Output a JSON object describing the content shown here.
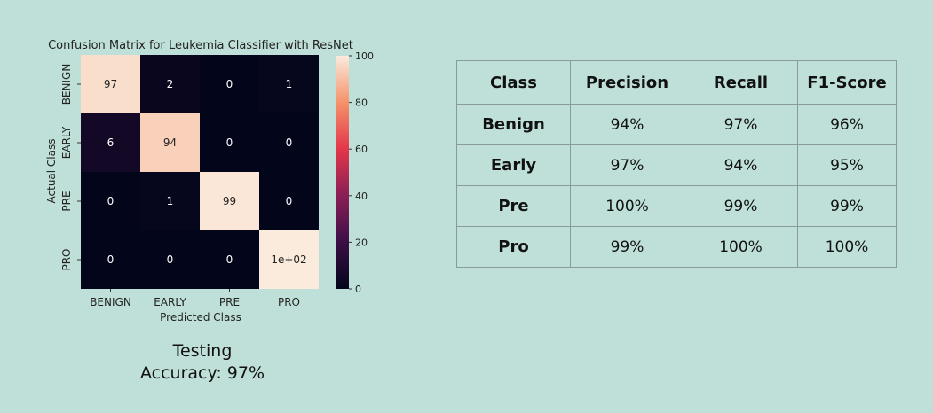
{
  "chart_data": {
    "type": "heatmap",
    "title": "Confusion Matrix for Leukemia Classifier with ResNet",
    "xlabel": "Predicted Class",
    "ylabel": "Actual Class",
    "x_categories": [
      "BENIGN",
      "EARLY",
      "PRE",
      "PRO"
    ],
    "y_categories": [
      "BENIGN",
      "EARLY",
      "PRE",
      "PRO"
    ],
    "values": [
      [
        97,
        2,
        0,
        1
      ],
      [
        6,
        94,
        0,
        0
      ],
      [
        0,
        1,
        99,
        0
      ],
      [
        0,
        0,
        0,
        100
      ]
    ],
    "cell_labels": [
      [
        "97",
        "2",
        "0",
        "1"
      ],
      [
        "6",
        "94",
        "0",
        "0"
      ],
      [
        "0",
        "1",
        "99",
        "0"
      ],
      [
        "0",
        "0",
        "0",
        "1e+02"
      ]
    ],
    "colorbar": {
      "min": 0,
      "max": 100,
      "ticks": [
        0,
        20,
        40,
        60,
        80,
        100
      ]
    }
  },
  "caption": {
    "line1": "Testing",
    "line2": "Accuracy: 97%"
  },
  "metrics_table": {
    "headers": [
      "Class",
      "Precision",
      "Recall",
      "F1-Score"
    ],
    "rows": [
      [
        "Benign",
        "94%",
        "97%",
        "96%"
      ],
      [
        "Early",
        "97%",
        "94%",
        "95%"
      ],
      [
        "Pre",
        "100%",
        "99%",
        "99%"
      ],
      [
        "Pro",
        "99%",
        "100%",
        "100%"
      ]
    ]
  }
}
